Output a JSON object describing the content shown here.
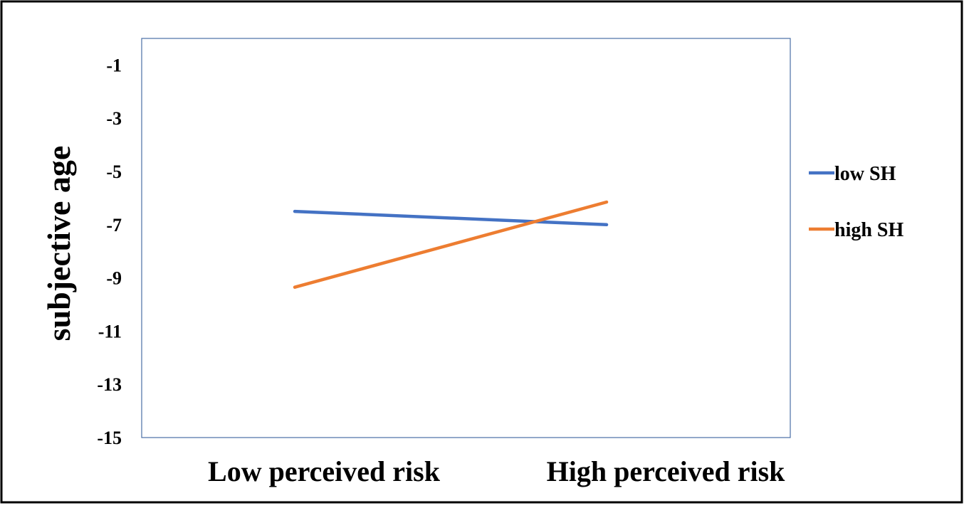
{
  "chart_data": {
    "type": "line",
    "title": "",
    "xlabel": "",
    "ylabel": "subjective age",
    "categories": [
      "Low perceived risk",
      "High perceived risk"
    ],
    "ylim": [
      -15,
      0
    ],
    "yticks": [
      -1,
      -3,
      -5,
      -7,
      -9,
      -11,
      -13,
      -15
    ],
    "grid": false,
    "legend_position": "right",
    "series": [
      {
        "name": "low SH",
        "color": "#4472C4",
        "values": [
          -6.5,
          -7.0
        ]
      },
      {
        "name": "high SH",
        "color": "#ED7D31",
        "values": [
          -9.35,
          -6.15
        ]
      }
    ]
  }
}
